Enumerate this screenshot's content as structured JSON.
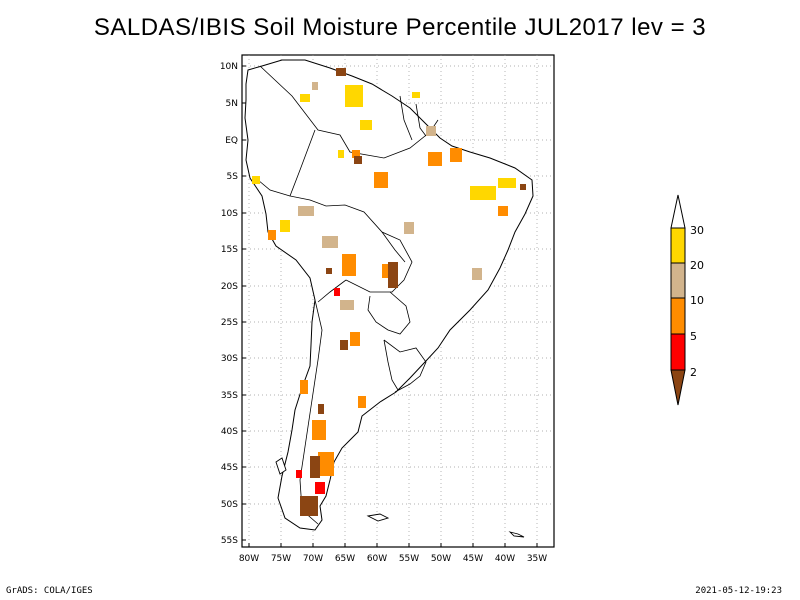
{
  "title": "SALDAS/IBIS Soil Moisture Percentile JUL2017 lev = 3",
  "map": {
    "lat_labels": [
      "10N",
      "5N",
      "EQ",
      "5S",
      "10S",
      "15S",
      "20S",
      "25S",
      "30S",
      "35S",
      "40S",
      "45S",
      "50S",
      "55S"
    ],
    "lon_labels": [
      "80W",
      "75W",
      "70W",
      "65W",
      "60W",
      "55W",
      "50W",
      "45W",
      "40W",
      "35W"
    ],
    "extent": {
      "lon_min": -81,
      "lon_max": -33,
      "lat_min": -56,
      "lat_max": 12
    },
    "grid": "dotted"
  },
  "legend": {
    "labels": [
      "30",
      "20",
      "10",
      "5",
      "2"
    ],
    "colors": {
      "above_30": "#ffffff",
      "band_20_30": "#ffd700",
      "band_10_20": "#d2b48c",
      "band_5_10": "#ff8c00",
      "band_2_5": "#ff0000",
      "below_2": "#8b4513"
    }
  },
  "footer": {
    "left": "GrADS: COLA/IGES",
    "right": "2021-05-12-19:23"
  }
}
